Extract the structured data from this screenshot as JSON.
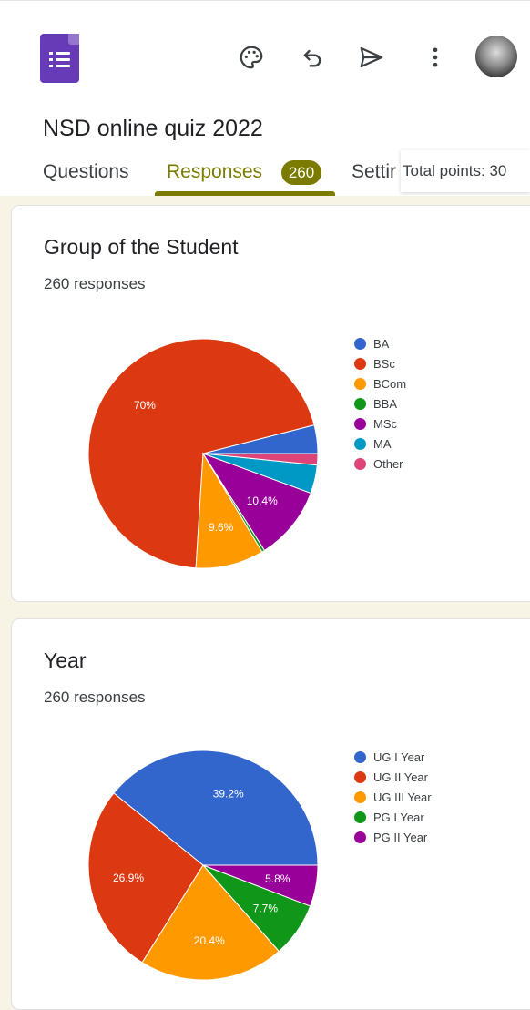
{
  "header": {
    "form_title": "NSD online quiz 2022",
    "icons": [
      "forms-logo",
      "palette-icon",
      "undo-icon",
      "send-icon",
      "more-vert-icon",
      "avatar"
    ]
  },
  "tabs": [
    {
      "label": "Questions"
    },
    {
      "label": "Responses",
      "badge": "260"
    },
    {
      "label": "Settir"
    }
  ],
  "total_points": "Total points: 30",
  "accent": "#7b7b00",
  "cards": [
    {
      "title": "Group of the Student",
      "responses": "260 responses",
      "chart_data": {
        "type": "pie",
        "labels": [
          "BA",
          "BSc",
          "BCom",
          "BBA",
          "MSc",
          "MA",
          "Other"
        ],
        "values": [
          4.0,
          70.0,
          9.6,
          0.4,
          10.4,
          4.0,
          1.6
        ],
        "colors": [
          "#3366cc",
          "#dc3912",
          "#ff9900",
          "#109618",
          "#990099",
          "#0099c6",
          "#dd4477"
        ],
        "data_labels": [
          "",
          "70%",
          "9.6%",
          "",
          "10.4%",
          "",
          ""
        ],
        "legend_position": "right"
      }
    },
    {
      "title": "Year",
      "responses": "260 responses",
      "chart_data": {
        "type": "pie",
        "labels": [
          "UG I Year",
          "UG II Year",
          "UG III Year",
          "PG I Year",
          "PG II Year"
        ],
        "values": [
          39.2,
          26.9,
          20.4,
          7.7,
          5.8
        ],
        "colors": [
          "#3366cc",
          "#dc3912",
          "#ff9900",
          "#109618",
          "#990099"
        ],
        "data_labels": [
          "39.2%",
          "26.9%",
          "20.4%",
          "7.7%",
          "5.8%"
        ],
        "legend_position": "right"
      }
    }
  ]
}
